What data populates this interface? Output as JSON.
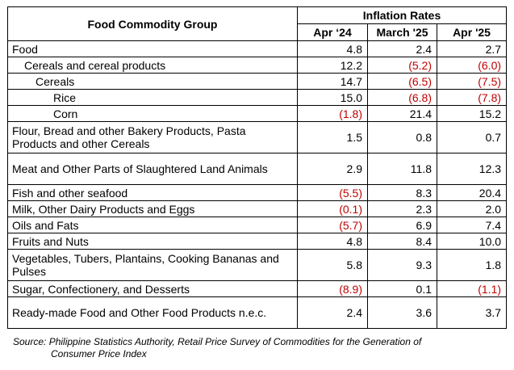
{
  "header": {
    "group_label": "Food Commodity Group",
    "inflation_label": "Inflation Rates",
    "col1": "Apr ‘24",
    "col2": "March '25",
    "col3": "Apr '25"
  },
  "rows": [
    {
      "label": "Food",
      "v1": "4.8",
      "v2": "2.4",
      "v3": "2.7"
    },
    {
      "label": "Cereals and cereal products",
      "v1": "12.2",
      "v2": "(5.2)",
      "v3": "(6.0)"
    },
    {
      "label": "Cereals",
      "v1": "14.7",
      "v2": "(6.5)",
      "v3": "(7.5)"
    },
    {
      "label": "Rice",
      "v1": "15.0",
      "v2": "(6.8)",
      "v3": "(7.8)"
    },
    {
      "label": "Corn",
      "v1": "(1.8)",
      "v2": "21.4",
      "v3": "15.2"
    },
    {
      "label": "Flour, Bread and other Bakery Products, Pasta Products and other Cereals",
      "v1": "1.5",
      "v2": "0.8",
      "v3": "0.7"
    },
    {
      "label": "Meat and Other Parts of Slaughtered Land Animals",
      "v1": "2.9",
      "v2": "11.8",
      "v3": "12.3"
    },
    {
      "label": "Fish and other seafood",
      "v1": "(5.5)",
      "v2": "8.3",
      "v3": "20.4"
    },
    {
      "label": "Milk, Other Dairy Products and Eggs",
      "v1": "(0.1)",
      "v2": "2.3",
      "v3": "2.0"
    },
    {
      "label": "Oils and Fats",
      "v1": "(5.7)",
      "v2": "6.9",
      "v3": "7.4"
    },
    {
      "label": "Fruits and Nuts",
      "v1": "4.8",
      "v2": "8.4",
      "v3": "10.0"
    },
    {
      "label": "Vegetables, Tubers, Plantains, Cooking Bananas and Pulses",
      "v1": "5.8",
      "v2": "9.3",
      "v3": "1.8"
    },
    {
      "label": "Sugar, Confectionery, and Desserts",
      "v1": "(8.9)",
      "v2": "0.1",
      "v3": "(1.1)"
    },
    {
      "label": "Ready-made Food and Other Food Products n.e.c.",
      "v1": "2.4",
      "v2": "3.6",
      "v3": "3.7"
    }
  ],
  "source": {
    "line1": "Source: Philippine Statistics Authority, Retail Price Survey of Commodities for the Generation of",
    "line2": "Consumer Price Index"
  },
  "colors": {
    "negative": "#c00000",
    "text": "#000000"
  }
}
